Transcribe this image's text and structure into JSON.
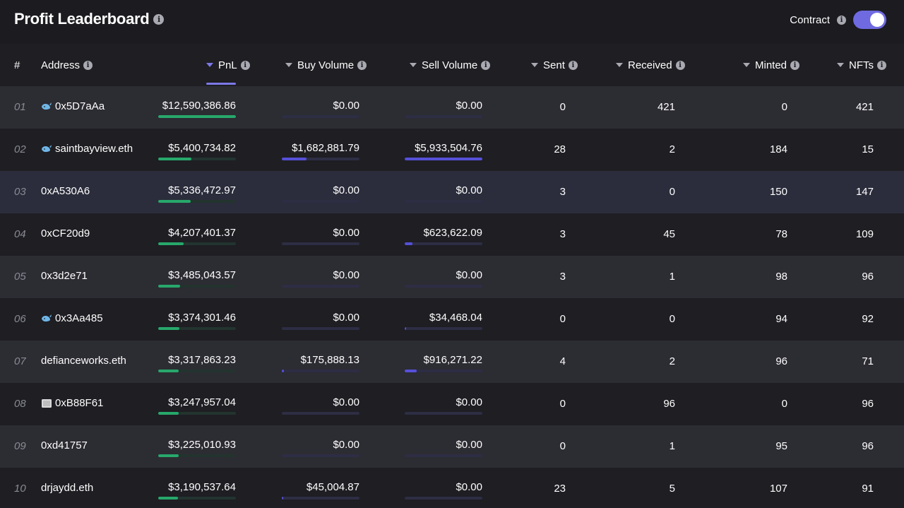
{
  "header": {
    "title": "Profit Leaderboard",
    "contract_label": "Contract",
    "contract_toggle_on": true
  },
  "columns": {
    "rank": "#",
    "address": "Address",
    "pnl": "PnL",
    "buy_volume": "Buy Volume",
    "sell_volume": "Sell Volume",
    "sent": "Sent",
    "received": "Received",
    "minted": "Minted",
    "nfts": "NFTs"
  },
  "colors": {
    "accent": "#7c78e8",
    "pnl_bar": "#27a86b",
    "volume_bar": "#5550d8"
  },
  "rows": [
    {
      "rank": "01",
      "icon": "whale-icon",
      "address": "0x5D7aAa",
      "pnl": "$12,590,386.86",
      "pnl_fill": 1.0,
      "buy_volume": "$0.00",
      "buy_fill": 0,
      "sell_volume": "$0.00",
      "sell_fill": 0,
      "sent": "0",
      "received": "421",
      "minted": "0",
      "nfts": "421"
    },
    {
      "rank": "02",
      "icon": "whale-icon",
      "address": "saintbayview.eth",
      "pnl": "$5,400,734.82",
      "pnl_fill": 0.43,
      "buy_volume": "$1,682,881.79",
      "buy_fill": 0.32,
      "sell_volume": "$5,933,504.76",
      "sell_fill": 1.0,
      "sent": "28",
      "received": "2",
      "minted": "184",
      "nfts": "15"
    },
    {
      "rank": "03",
      "icon": "",
      "address": "0xA530A6",
      "pnl": "$5,336,472.97",
      "pnl_fill": 0.42,
      "buy_volume": "$0.00",
      "buy_fill": 0,
      "sell_volume": "$0.00",
      "sell_fill": 0,
      "sent": "3",
      "received": "0",
      "minted": "150",
      "nfts": "147"
    },
    {
      "rank": "04",
      "icon": "",
      "address": "0xCF20d9",
      "pnl": "$4,207,401.37",
      "pnl_fill": 0.33,
      "buy_volume": "$0.00",
      "buy_fill": 0,
      "sell_volume": "$623,622.09",
      "sell_fill": 0.1,
      "sent": "3",
      "received": "45",
      "minted": "78",
      "nfts": "109"
    },
    {
      "rank": "05",
      "icon": "",
      "address": "0x3d2e71",
      "pnl": "$3,485,043.57",
      "pnl_fill": 0.28,
      "buy_volume": "$0.00",
      "buy_fill": 0,
      "sell_volume": "$0.00",
      "sell_fill": 0,
      "sent": "3",
      "received": "1",
      "minted": "98",
      "nfts": "96"
    },
    {
      "rank": "06",
      "icon": "whale-icon",
      "address": "0x3Aa485",
      "pnl": "$3,374,301.46",
      "pnl_fill": 0.27,
      "buy_volume": "$0.00",
      "buy_fill": 0,
      "sell_volume": "$34,468.04",
      "sell_fill": 0.01,
      "sent": "0",
      "received": "0",
      "minted": "94",
      "nfts": "92"
    },
    {
      "rank": "07",
      "icon": "",
      "address": "defianceworks.eth",
      "pnl": "$3,317,863.23",
      "pnl_fill": 0.26,
      "buy_volume": "$175,888.13",
      "buy_fill": 0.03,
      "sell_volume": "$916,271.22",
      "sell_fill": 0.15,
      "sent": "4",
      "received": "2",
      "minted": "96",
      "nfts": "71"
    },
    {
      "rank": "08",
      "icon": "nft-avatar-icon",
      "address": "0xB88F61",
      "pnl": "$3,247,957.04",
      "pnl_fill": 0.26,
      "buy_volume": "$0.00",
      "buy_fill": 0,
      "sell_volume": "$0.00",
      "sell_fill": 0,
      "sent": "0",
      "received": "96",
      "minted": "0",
      "nfts": "96"
    },
    {
      "rank": "09",
      "icon": "",
      "address": "0xd41757",
      "pnl": "$3,225,010.93",
      "pnl_fill": 0.26,
      "buy_volume": "$0.00",
      "buy_fill": 0,
      "sell_volume": "$0.00",
      "sell_fill": 0,
      "sent": "0",
      "received": "1",
      "minted": "95",
      "nfts": "96"
    },
    {
      "rank": "10",
      "icon": "",
      "address": "drjaydd.eth",
      "pnl": "$3,190,537.64",
      "pnl_fill": 0.25,
      "buy_volume": "$45,004.87",
      "buy_fill": 0.01,
      "sell_volume": "$0.00",
      "sell_fill": 0,
      "sent": "23",
      "received": "5",
      "minted": "107",
      "nfts": "91"
    }
  ]
}
